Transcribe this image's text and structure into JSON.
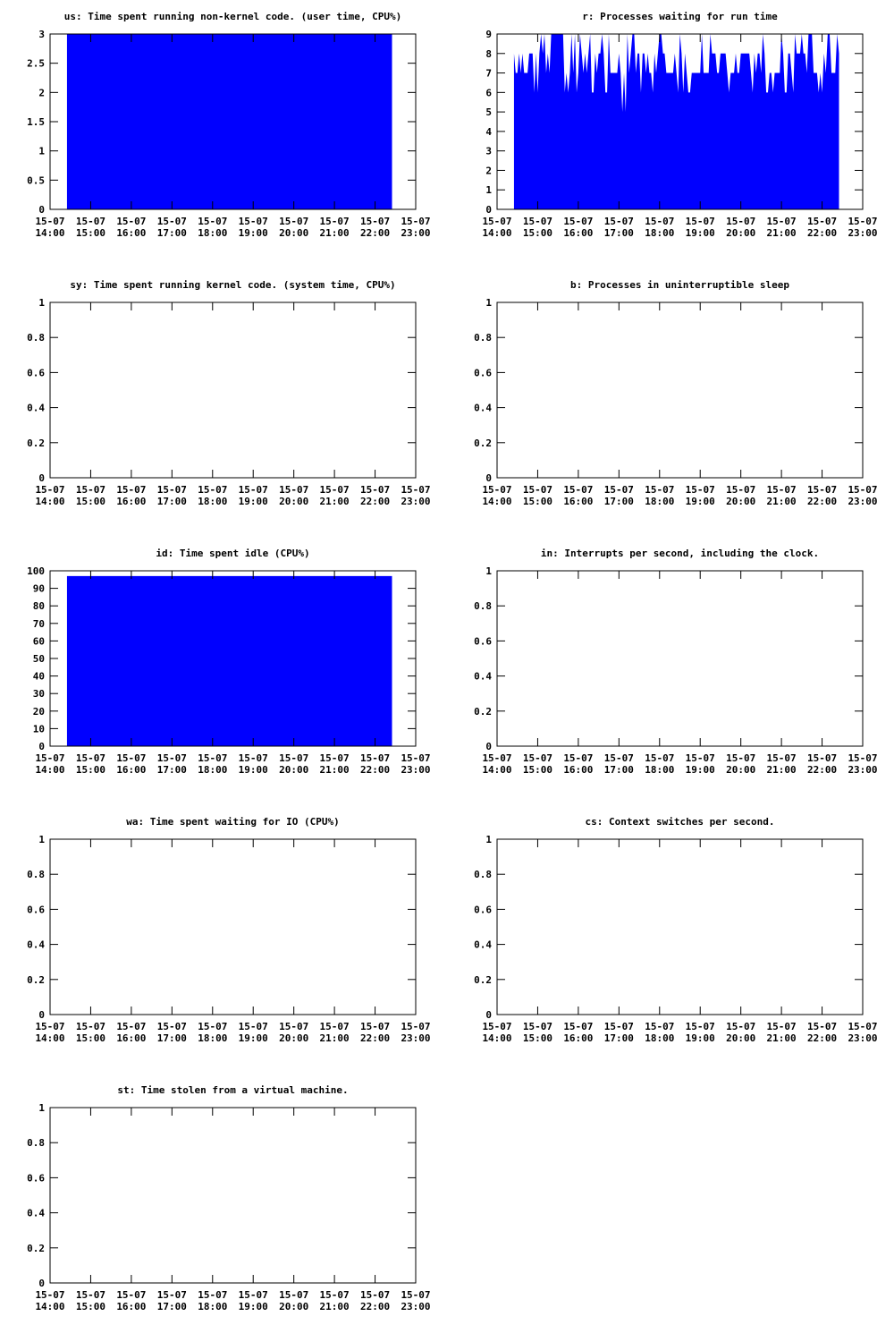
{
  "colors": {
    "fill": "#0000ff",
    "frame": "#000000",
    "background": "#ffffff"
  },
  "x_ticks": [
    [
      "15-07",
      "14:00"
    ],
    [
      "15-07",
      "15:00"
    ],
    [
      "15-07",
      "16:00"
    ],
    [
      "15-07",
      "17:00"
    ],
    [
      "15-07",
      "18:00"
    ],
    [
      "15-07",
      "19:00"
    ],
    [
      "15-07",
      "20:00"
    ],
    [
      "15-07",
      "21:00"
    ],
    [
      "15-07",
      "22:00"
    ],
    [
      "15-07",
      "23:00"
    ]
  ],
  "chart_data": [
    {
      "id": "us",
      "type": "area",
      "title": "us: Time spent running non-kernel code. (user time, CPU%)",
      "xlim": [
        "15-07 14:00",
        "15-07 23:00"
      ],
      "ylim": [
        0,
        3
      ],
      "yticks": [
        "0",
        "0.5",
        "1",
        "1.5",
        "2",
        "2.5",
        "3"
      ],
      "x": [
        "15-07 14:25",
        "15-07 22:25"
      ],
      "values": [
        3,
        3
      ]
    },
    {
      "id": "r",
      "type": "area",
      "title": "r: Processes waiting for run time",
      "xlim": [
        "15-07 14:00",
        "15-07 23:00"
      ],
      "ylim": [
        0,
        9
      ],
      "yticks": [
        "0",
        "1",
        "2",
        "3",
        "4",
        "5",
        "6",
        "7",
        "8",
        "9"
      ],
      "x": [
        "15-07 14:25",
        "15-07 14:40",
        "15-07 14:50",
        "15-07 15:00",
        "15-07 15:20",
        "15-07 15:40",
        "15-07 16:00",
        "15-07 16:20",
        "15-07 16:40",
        "15-07 17:00",
        "15-07 17:20",
        "15-07 17:40",
        "15-07 18:00",
        "15-07 18:20",
        "15-07 18:40",
        "15-07 19:00",
        "15-07 19:20",
        "15-07 19:40",
        "15-07 20:00",
        "15-07 20:20",
        "15-07 20:40",
        "15-07 21:00",
        "15-07 21:20",
        "15-07 21:40",
        "15-07 22:00",
        "15-07 22:25"
      ],
      "values": [
        8,
        8,
        7,
        8,
        9,
        7,
        8,
        8,
        7,
        8,
        8,
        7,
        8,
        8,
        7,
        8,
        8,
        7,
        8,
        8,
        7,
        8,
        8,
        7,
        8,
        8
      ],
      "min_values": [
        5,
        6,
        5,
        6,
        6,
        6,
        6,
        6,
        6,
        5,
        6,
        6,
        7,
        6,
        6,
        7,
        6,
        6,
        6,
        6,
        6,
        6,
        6,
        6,
        6,
        7
      ],
      "max_values": [
        8,
        9,
        8,
        9,
        9,
        9,
        9,
        9,
        9,
        9,
        9,
        8,
        9,
        9,
        8,
        9,
        9,
        8,
        9,
        9,
        8,
        9,
        9,
        9,
        9,
        9
      ]
    },
    {
      "id": "sy",
      "type": "area",
      "title": "sy: Time spent running kernel code. (system time, CPU%)",
      "xlim": [
        "15-07 14:00",
        "15-07 23:00"
      ],
      "ylim": [
        0,
        1
      ],
      "yticks": [
        "0",
        "0.2",
        "0.4",
        "0.6",
        "0.8",
        "1"
      ],
      "x": [],
      "values": []
    },
    {
      "id": "b",
      "type": "area",
      "title": "b: Processes in uninterruptible sleep",
      "xlim": [
        "15-07 14:00",
        "15-07 23:00"
      ],
      "ylim": [
        0,
        1
      ],
      "yticks": [
        "0",
        "0.2",
        "0.4",
        "0.6",
        "0.8",
        "1"
      ],
      "x": [],
      "values": []
    },
    {
      "id": "id",
      "type": "area",
      "title": "id: Time spent idle (CPU%)",
      "xlim": [
        "15-07 14:00",
        "15-07 23:00"
      ],
      "ylim": [
        0,
        100
      ],
      "yticks": [
        "0",
        "10",
        "20",
        "30",
        "40",
        "50",
        "60",
        "70",
        "80",
        "90",
        "100"
      ],
      "x": [
        "15-07 14:25",
        "15-07 22:25"
      ],
      "values": [
        97,
        97
      ]
    },
    {
      "id": "in",
      "type": "area",
      "title": "in: Interrupts per second, including the clock.",
      "xlim": [
        "15-07 14:00",
        "15-07 23:00"
      ],
      "ylim": [
        0,
        1
      ],
      "yticks": [
        "0",
        "0.2",
        "0.4",
        "0.6",
        "0.8",
        "1"
      ],
      "x": [],
      "values": []
    },
    {
      "id": "wa",
      "type": "area",
      "title": "wa: Time spent waiting for IO (CPU%)",
      "xlim": [
        "15-07 14:00",
        "15-07 23:00"
      ],
      "ylim": [
        0,
        1
      ],
      "yticks": [
        "0",
        "0.2",
        "0.4",
        "0.6",
        "0.8",
        "1"
      ],
      "x": [],
      "values": []
    },
    {
      "id": "cs",
      "type": "area",
      "title": "cs: Context switches per second.",
      "xlim": [
        "15-07 14:00",
        "15-07 23:00"
      ],
      "ylim": [
        0,
        1
      ],
      "yticks": [
        "0",
        "0.2",
        "0.4",
        "0.6",
        "0.8",
        "1"
      ],
      "x": [],
      "values": []
    },
    {
      "id": "st",
      "type": "area",
      "title": "st: Time stolen from a virtual machine.",
      "xlim": [
        "15-07 14:00",
        "15-07 23:00"
      ],
      "ylim": [
        0,
        1
      ],
      "yticks": [
        "0",
        "0.2",
        "0.4",
        "0.6",
        "0.8",
        "1"
      ],
      "x": [],
      "values": []
    }
  ]
}
